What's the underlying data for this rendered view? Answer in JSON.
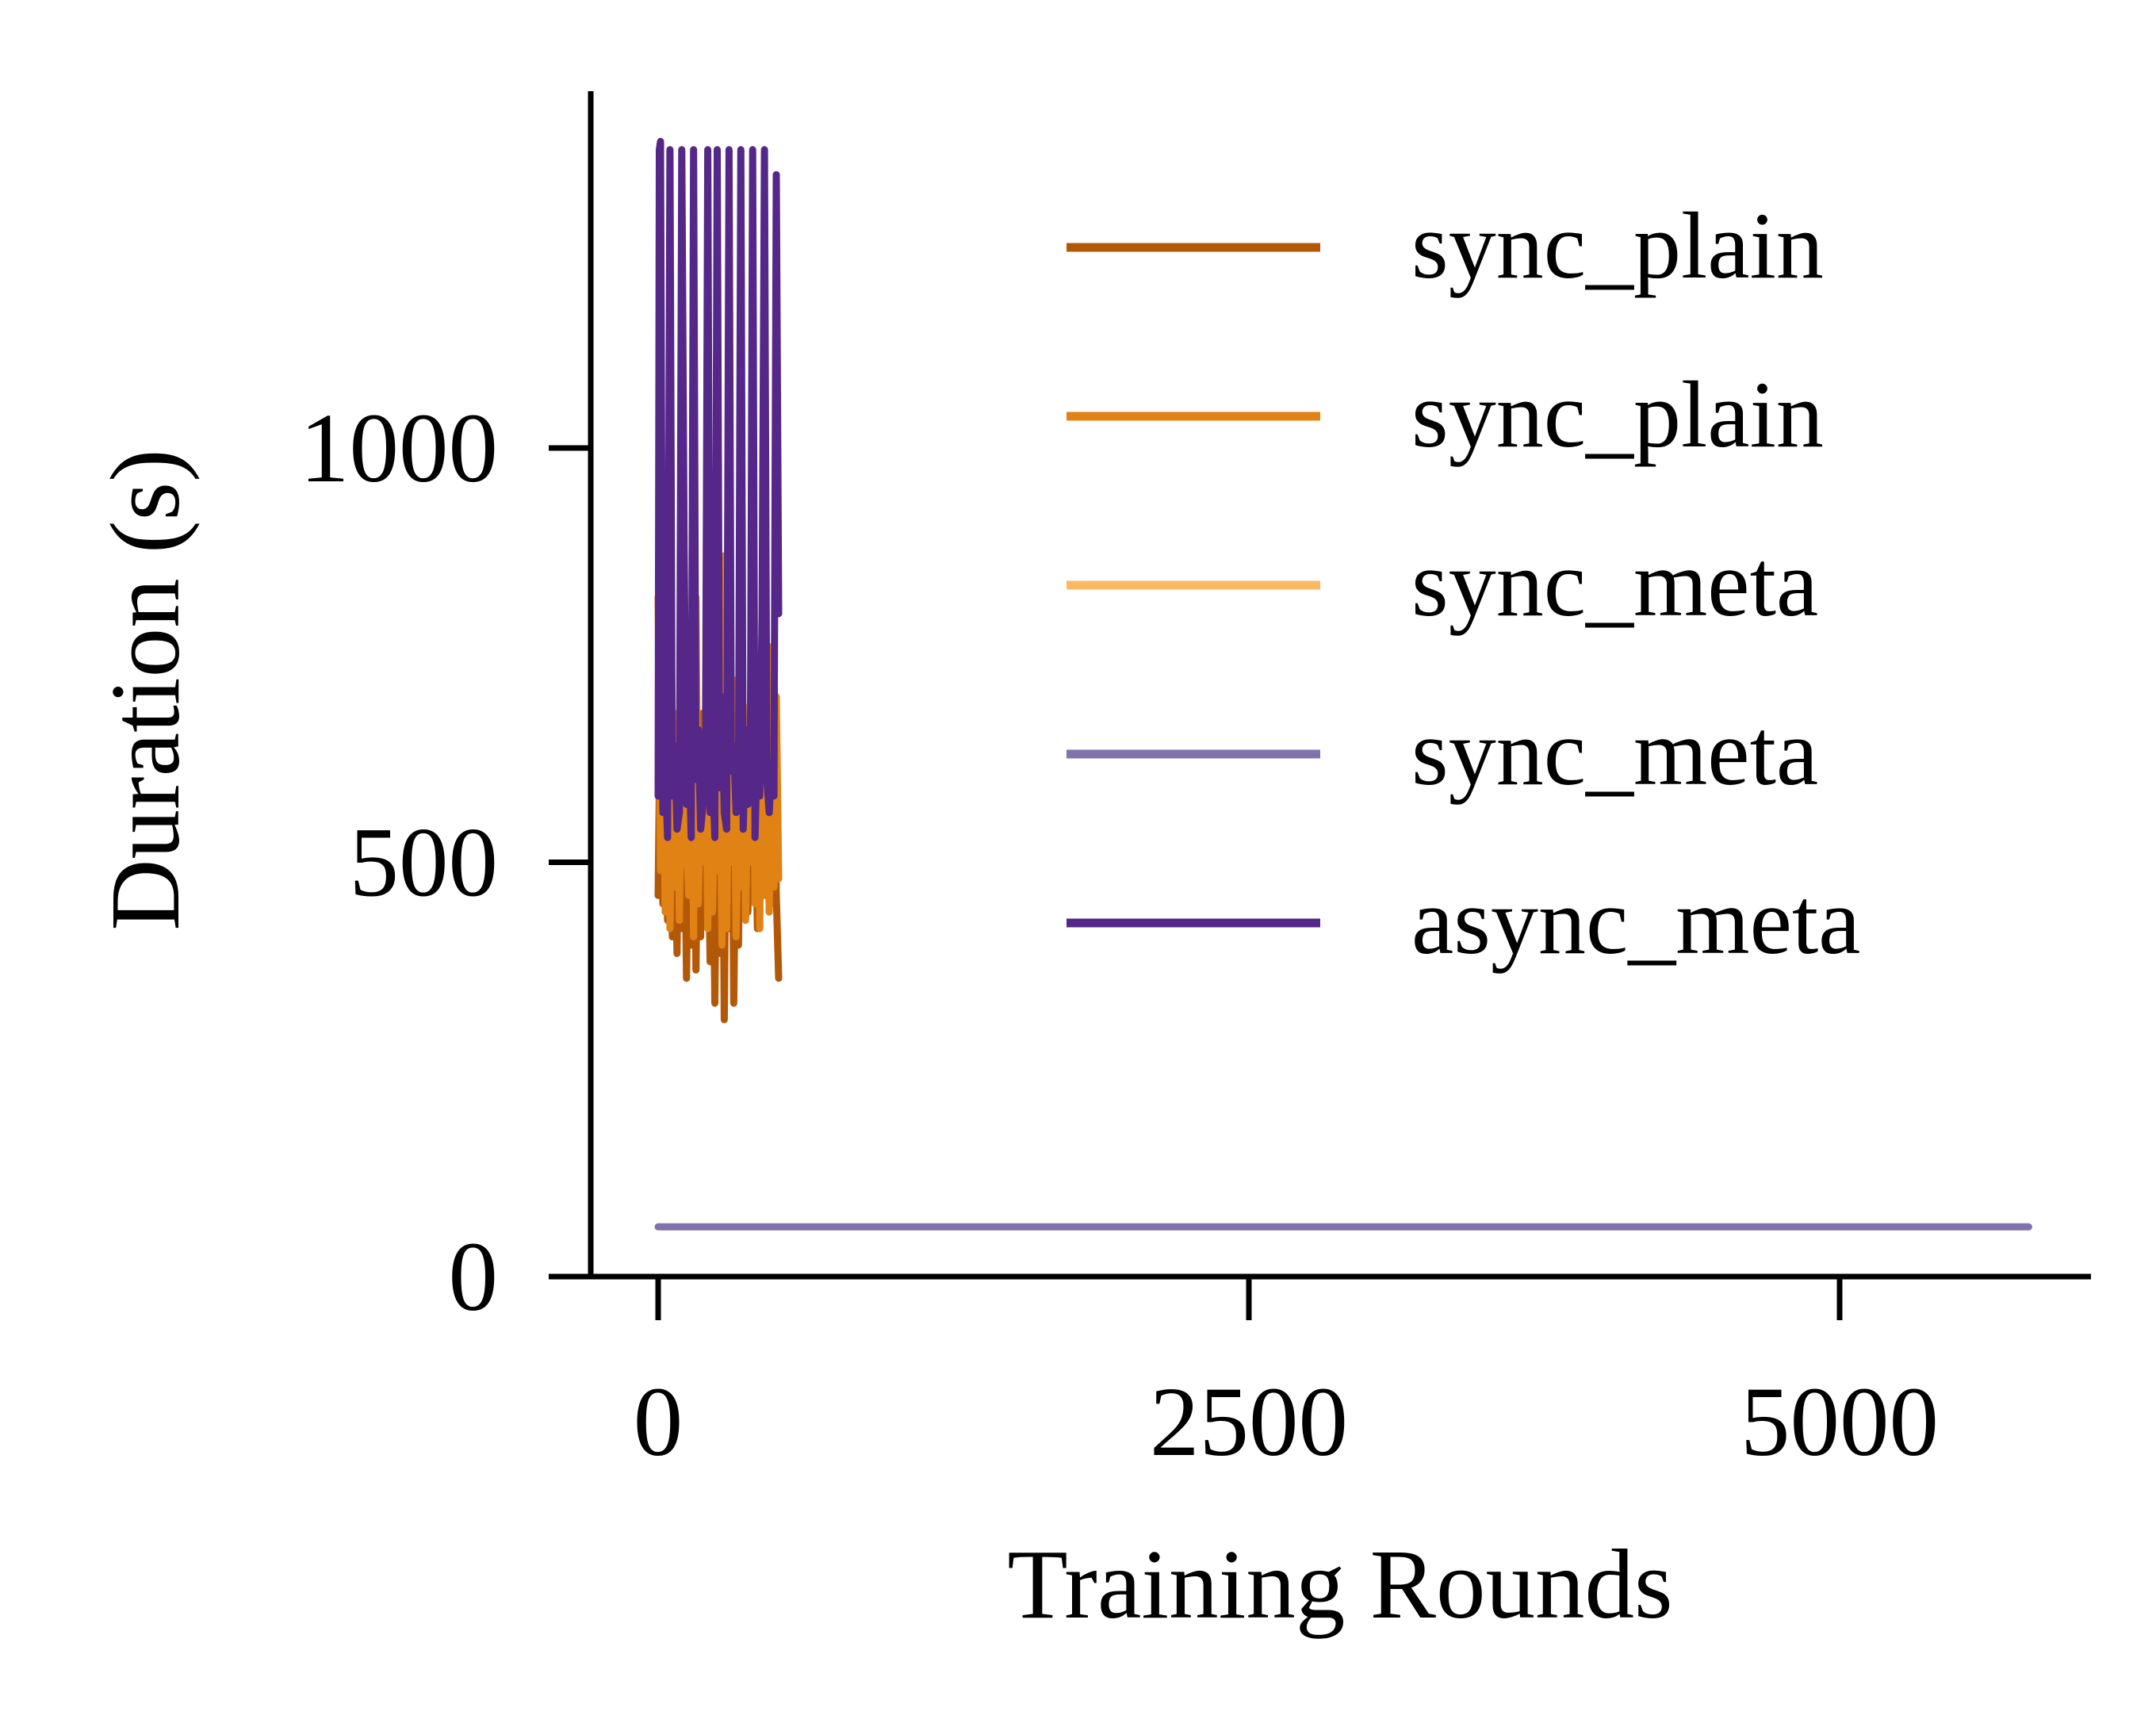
{
  "chart_data": {
    "type": "line",
    "title": "",
    "xlabel": "Training Rounds",
    "ylabel": "Duration (s)",
    "xlim": [
      -300,
      6100
    ],
    "ylim": [
      0,
      1430
    ],
    "xticks": [
      0,
      2500,
      5000
    ],
    "yticks": [
      0,
      500,
      1000
    ],
    "grid": false,
    "legend_position": "top-right",
    "series": [
      {
        "name": "sync_plain",
        "color": "#b35806",
        "x": [
          0,
          10,
          20,
          30,
          40,
          50,
          60,
          70,
          80,
          90,
          100,
          110,
          120,
          130,
          140,
          150,
          160,
          170,
          180,
          190,
          200,
          210,
          220,
          230,
          240,
          250,
          260,
          270,
          280,
          290,
          300,
          310,
          320,
          330,
          340,
          350,
          360,
          370,
          380,
          390,
          400,
          410,
          420,
          430,
          440,
          450,
          460,
          470,
          480,
          490,
          500,
          510
        ],
        "y": [
          460,
          720,
          450,
          600,
          430,
          650,
          410,
          560,
          390,
          640,
          420,
          590,
          360,
          580,
          400,
          720,
          370,
          620,
          410,
          680,
          430,
          560,
          380,
          600,
          330,
          640,
          390,
          700,
          310,
          620,
          420,
          660,
          330,
          580,
          400,
          650,
          480,
          560,
          440,
          640,
          470,
          590,
          420,
          700,
          480,
          620,
          460,
          560,
          450,
          690,
          460,
          360
        ]
      },
      {
        "name": "sync_plain",
        "color": "#e08214",
        "x": [
          0,
          10,
          20,
          30,
          40,
          50,
          60,
          70,
          80,
          90,
          100,
          110,
          120,
          130,
          140,
          150,
          160,
          170,
          180,
          190,
          200,
          210,
          220,
          230,
          240,
          250,
          260,
          270,
          280,
          290,
          300,
          310,
          320,
          330,
          340,
          350,
          360,
          370,
          380,
          390,
          400,
          410,
          420,
          430,
          440,
          450,
          460,
          470,
          480,
          490,
          500,
          510
        ],
        "y": [
          820,
          490,
          700,
          440,
          750,
          420,
          600,
          470,
          680,
          430,
          640,
          500,
          520,
          460,
          730,
          410,
          820,
          450,
          590,
          500,
          680,
          420,
          760,
          440,
          580,
          490,
          700,
          400,
          870,
          420,
          640,
          500,
          720,
          410,
          560,
          470,
          690,
          430,
          600,
          500,
          720,
          450,
          650,
          420,
          730,
          460,
          600,
          440,
          760,
          470,
          700,
          480
        ]
      },
      {
        "name": "sync_meta",
        "color": "#fdb863",
        "x": [],
        "y": []
      },
      {
        "name": "sync_meta",
        "color": "#8073ac",
        "x": [
          0,
          5800
        ],
        "y": [
          60,
          60
        ]
      },
      {
        "name": "async_meta",
        "color": "#542788",
        "x": [
          0,
          5,
          10,
          20,
          30,
          40,
          50,
          60,
          70,
          80,
          90,
          100,
          110,
          120,
          130,
          140,
          150,
          160,
          170,
          180,
          190,
          200,
          210,
          220,
          230,
          240,
          250,
          260,
          270,
          280,
          290,
          300,
          310,
          320,
          330,
          340,
          350,
          360,
          370,
          380,
          390,
          400,
          410,
          420,
          430,
          440,
          450,
          460,
          470,
          480,
          490,
          500,
          510
        ],
        "y": [
          580,
          1360,
          1370,
          560,
          620,
          530,
          1360,
          580,
          640,
          540,
          560,
          1360,
          880,
          570,
          650,
          530,
          1360,
          600,
          660,
          540,
          570,
          600,
          1360,
          560,
          620,
          530,
          1360,
          590,
          700,
          560,
          540,
          1360,
          610,
          640,
          560,
          580,
          1360,
          540,
          660,
          570,
          600,
          1360,
          530,
          650,
          580,
          800,
          1360,
          600,
          560,
          620,
          580,
          1330,
          800
        ]
      }
    ]
  }
}
